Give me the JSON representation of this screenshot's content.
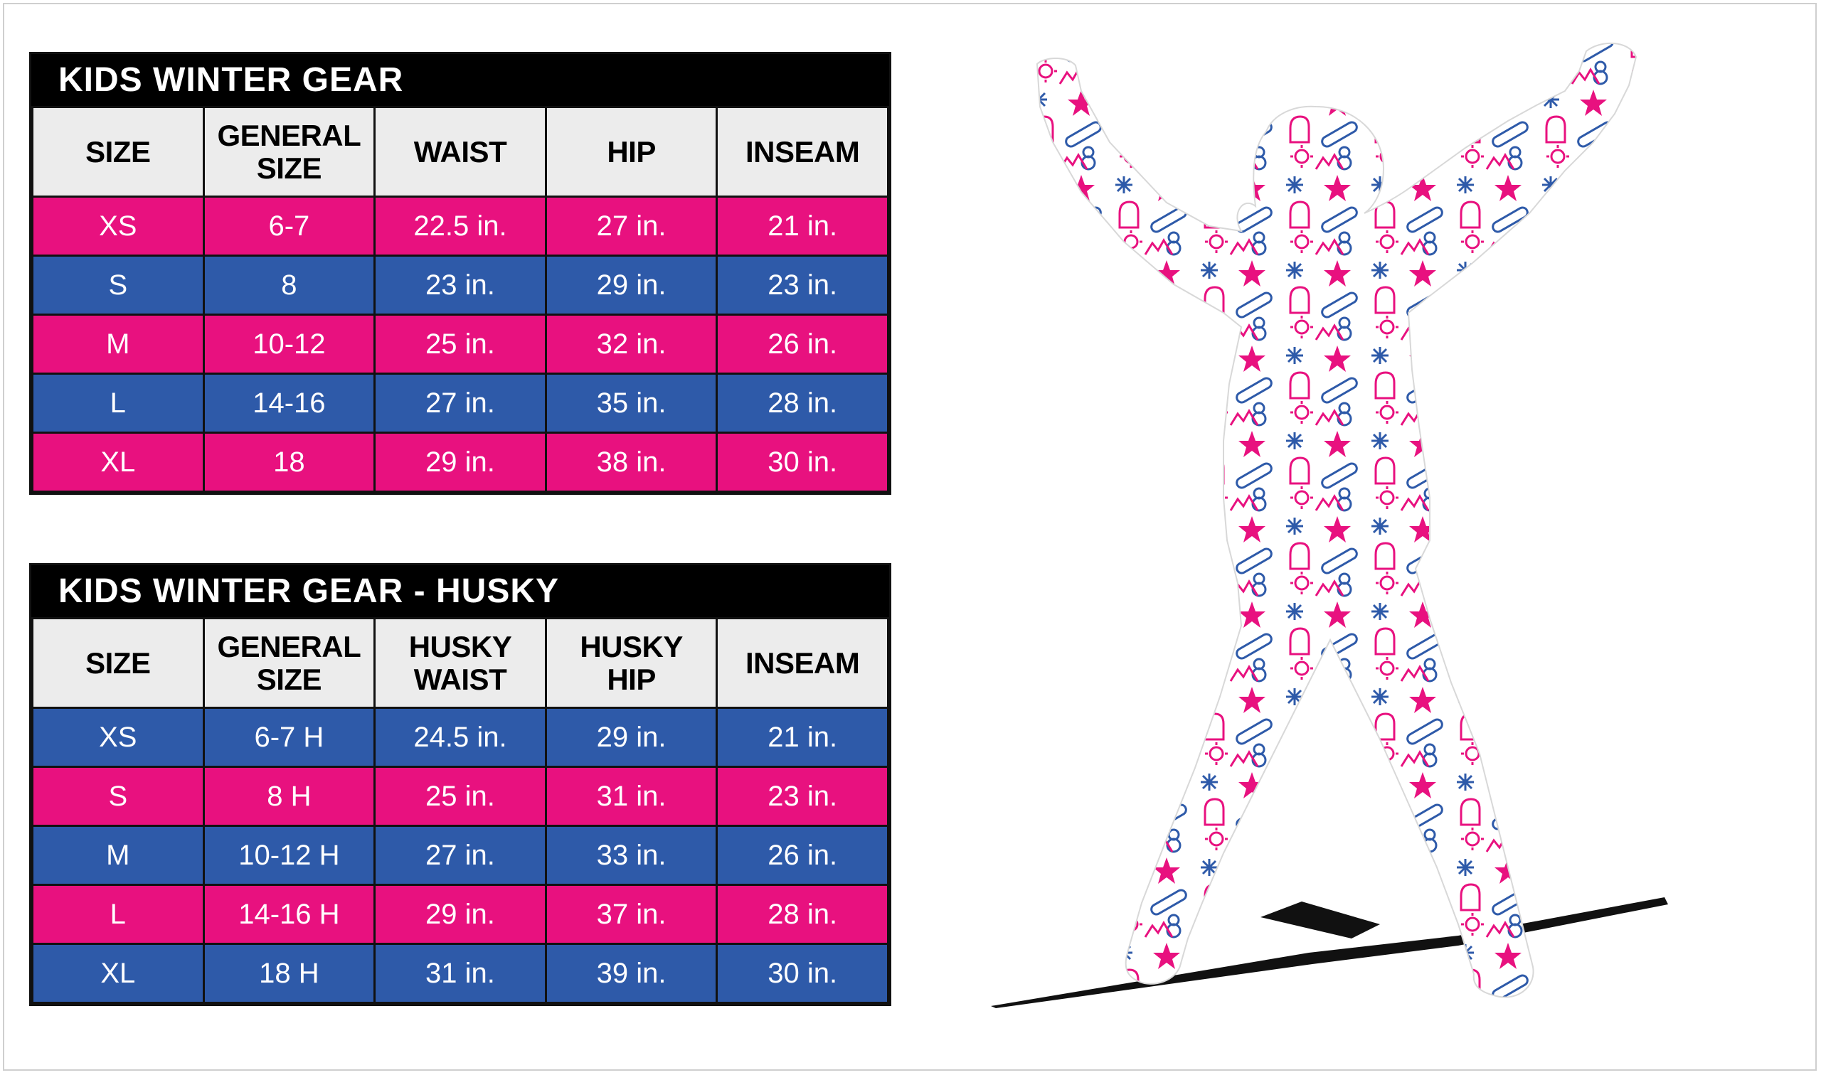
{
  "colors": {
    "pink": "#e8117f",
    "blue": "#2e5aa9",
    "header_bg": "#ececec",
    "title_bg": "#000000"
  },
  "tables": [
    {
      "title": "KIDS WINTER GEAR",
      "headers": [
        [
          "SIZE"
        ],
        [
          "GENERAL",
          "SIZE"
        ],
        [
          "WAIST"
        ],
        [
          "HIP"
        ],
        [
          "INSEAM"
        ]
      ],
      "rows": [
        {
          "color": "pink",
          "cells": [
            "XS",
            "6-7",
            "22.5 in.",
            "27 in.",
            "21 in."
          ]
        },
        {
          "color": "blue",
          "cells": [
            "S",
            "8",
            "23 in.",
            "29 in.",
            "23 in."
          ]
        },
        {
          "color": "pink",
          "cells": [
            "M",
            "10-12",
            "25 in.",
            "32 in.",
            "26 in."
          ]
        },
        {
          "color": "blue",
          "cells": [
            "L",
            "14-16",
            "27 in.",
            "35 in.",
            "28 in."
          ]
        },
        {
          "color": "pink",
          "cells": [
            "XL",
            "18",
            "29 in.",
            "38 in.",
            "30 in."
          ]
        }
      ]
    },
    {
      "title": "KIDS WINTER GEAR - HUSKY",
      "headers": [
        [
          "SIZE"
        ],
        [
          "GENERAL",
          "SIZE"
        ],
        [
          "HUSKY",
          "WAIST"
        ],
        [
          "HUSKY",
          "HIP"
        ],
        [
          "INSEAM"
        ]
      ],
      "rows": [
        {
          "color": "blue",
          "cells": [
            "XS",
            "6-7 H",
            "24.5 in.",
            "29 in.",
            "21 in."
          ]
        },
        {
          "color": "pink",
          "cells": [
            "S",
            "8 H",
            "25 in.",
            "31 in.",
            "23 in."
          ]
        },
        {
          "color": "blue",
          "cells": [
            "M",
            "10-12 H",
            "27 in.",
            "33 in.",
            "26 in."
          ]
        },
        {
          "color": "pink",
          "cells": [
            "L",
            "14-16 H",
            "29 in.",
            "37 in.",
            "28 in."
          ]
        },
        {
          "color": "blue",
          "cells": [
            "XL",
            "18 H",
            "31 in.",
            "39 in.",
            "30 in."
          ]
        }
      ]
    }
  ],
  "illustration": {
    "subject": "kid-silhouette-winter-pattern-icon",
    "pattern_icons": [
      "snowflake-icon",
      "star-icon",
      "mitten-icon",
      "snowboard-icon",
      "skate-icon",
      "snowman-icon",
      "sun-icon"
    ]
  }
}
